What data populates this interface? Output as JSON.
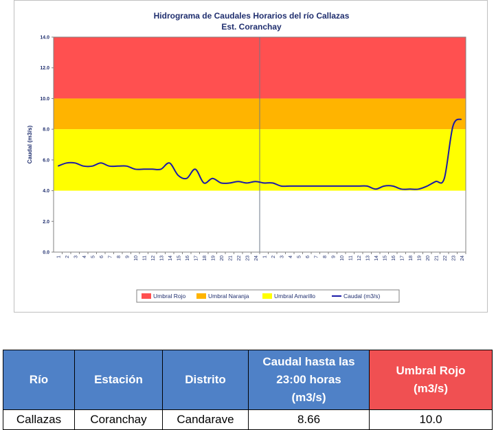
{
  "chart_data": {
    "type": "line",
    "title": "Hidrograma de Caudales Horarios del río Callazas",
    "subtitle": "Est. Coranchay",
    "ylabel": "Caudal (m3/s)",
    "xlabel": "",
    "ylim": [
      0,
      14
    ],
    "yticks": [
      "0.0",
      "2.0",
      "4.0",
      "6.0",
      "8.0",
      "10.0",
      "12.0",
      "14.0"
    ],
    "x_ticks_day1": [
      "1",
      "2",
      "3",
      "4",
      "5",
      "6",
      "7",
      "8",
      "9",
      "10",
      "11",
      "12",
      "13",
      "14",
      "15",
      "16",
      "17",
      "18",
      "19",
      "20",
      "21",
      "22",
      "23",
      "24"
    ],
    "x_ticks_day2": [
      "1",
      "2",
      "3",
      "4",
      "5",
      "6",
      "7",
      "8",
      "9",
      "10",
      "11",
      "12",
      "13",
      "14",
      "15",
      "16",
      "17",
      "18",
      "19",
      "20",
      "21",
      "22",
      "23",
      "24"
    ],
    "bands": [
      {
        "name": "Umbral Rojo",
        "from": 10,
        "to": 14,
        "color": "#ff5050"
      },
      {
        "name": "Umbral Naranja",
        "from": 8,
        "to": 10,
        "color": "#ffb400"
      },
      {
        "name": "Umbral Amarillo",
        "from": 4,
        "to": 8,
        "color": "#ffff00"
      }
    ],
    "series": [
      {
        "name": "Caudal (m3/s)",
        "color": "#1a1aa8",
        "x": [
          0,
          1,
          2,
          3,
          4,
          5,
          6,
          7,
          8,
          9,
          10,
          11,
          12,
          13,
          14,
          15,
          16,
          17,
          18,
          19,
          20,
          21,
          22,
          23,
          24,
          25,
          26,
          27,
          28,
          29,
          30,
          31,
          32,
          33,
          34,
          35,
          36,
          37,
          38,
          39,
          40,
          41,
          42,
          43,
          44,
          45,
          46,
          47
        ],
        "values": [
          5.6,
          5.8,
          5.8,
          5.6,
          5.6,
          5.8,
          5.6,
          5.6,
          5.6,
          5.4,
          5.4,
          5.4,
          5.4,
          5.8,
          5.0,
          4.8,
          5.4,
          4.5,
          4.8,
          4.5,
          4.5,
          4.6,
          4.5,
          4.6,
          4.5,
          4.5,
          4.3,
          4.3,
          4.3,
          4.3,
          4.3,
          4.3,
          4.3,
          4.3,
          4.3,
          4.3,
          4.3,
          4.1,
          4.3,
          4.3,
          4.1,
          4.1,
          4.1,
          4.3,
          4.6,
          4.8,
          8.2,
          8.66
        ]
      }
    ],
    "legend": "bottom",
    "grid": false,
    "day_divider_after_hour": 24
  },
  "table": {
    "headers": {
      "rio": "Río",
      "estacion": "Estación",
      "distrito": "Distrito",
      "caudal_line1": "Caudal hasta las",
      "caudal_line2": "23:00 horas",
      "caudal_line3": "(m3/s)",
      "umbral_line1": "Umbral Rojo",
      "umbral_line2": "(m3/s)"
    },
    "row": {
      "rio": "Callazas",
      "estacion": "Coranchay",
      "distrito": "Candarave",
      "caudal": "8.66",
      "umbral": "10.0"
    }
  }
}
